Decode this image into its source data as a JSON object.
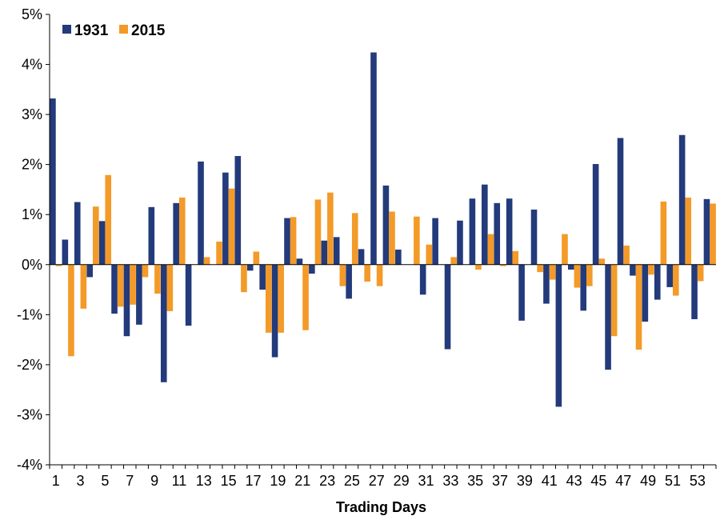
{
  "chart_data": {
    "type": "bar",
    "xlabel": "Trading Days",
    "ylabel": "",
    "ylim": [
      -4,
      5
    ],
    "y_ticks": [
      -4,
      -3,
      -2,
      -1,
      0,
      1,
      2,
      3,
      4,
      5
    ],
    "y_tick_labels": [
      "-4%",
      "-3%",
      "-2%",
      "-1%",
      "0%",
      "1%",
      "2%",
      "3%",
      "4%",
      "5%"
    ],
    "x_tick_labels": [
      "1",
      "3",
      "5",
      "7",
      "9",
      "11",
      "13",
      "15",
      "17",
      "19",
      "21",
      "23",
      "25",
      "27",
      "29",
      "31",
      "33",
      "35",
      "37",
      "39",
      "41",
      "43",
      "45",
      "47",
      "49",
      "51",
      "53"
    ],
    "categories": [
      1,
      2,
      3,
      4,
      5,
      6,
      7,
      8,
      9,
      10,
      11,
      12,
      13,
      14,
      15,
      16,
      17,
      18,
      19,
      20,
      21,
      22,
      23,
      24,
      25,
      26,
      27,
      28,
      29,
      30,
      31,
      32,
      33,
      34,
      35,
      36,
      37,
      38,
      39,
      40,
      41,
      42,
      43,
      44,
      45,
      46,
      47,
      48,
      49,
      50,
      51,
      52,
      53,
      54
    ],
    "grid": false,
    "legend_position": "top-left",
    "series": [
      {
        "name": "1931",
        "color": "#233a7b",
        "values": [
          3.32,
          0.5,
          1.25,
          -0.25,
          0.87,
          -0.98,
          -1.43,
          -1.2,
          1.15,
          -2.35,
          1.23,
          -1.22,
          2.06,
          0,
          1.84,
          2.17,
          -0.12,
          -0.5,
          -1.85,
          0.93,
          0.12,
          -0.18,
          0.48,
          0.55,
          -0.68,
          0.31,
          4.24,
          1.58,
          0.3,
          0,
          -0.6,
          0.93,
          -1.69,
          0.88,
          1.32,
          1.6,
          1.23,
          1.32,
          -1.12,
          1.1,
          -0.78,
          -2.84,
          -0.1,
          -0.92,
          2.01,
          -2.1,
          2.53,
          -0.22,
          -1.14,
          -0.7,
          -0.45,
          2.59,
          -1.09,
          1.31
        ]
      },
      {
        "name": "2015",
        "color": "#f39a28",
        "values": [
          -0.03,
          -1.83,
          -0.88,
          1.16,
          1.79,
          -0.84,
          -0.8,
          -0.25,
          -0.58,
          -0.93,
          1.34,
          0,
          0.15,
          0.46,
          1.52,
          -0.55,
          0.26,
          -1.36,
          -1.36,
          0.95,
          -1.31,
          1.3,
          1.44,
          -0.43,
          1.03,
          -0.34,
          -0.43,
          1.06,
          0,
          0.96,
          0.4,
          0,
          0.15,
          0,
          -0.1,
          0.61,
          -0.03,
          0.27,
          0,
          -0.15,
          -0.3,
          0.61,
          -0.46,
          -0.43,
          0.12,
          -1.43,
          0.38,
          -1.7,
          -0.2,
          1.26,
          -0.62,
          1.34,
          -0.33,
          1.22
        ]
      }
    ]
  }
}
